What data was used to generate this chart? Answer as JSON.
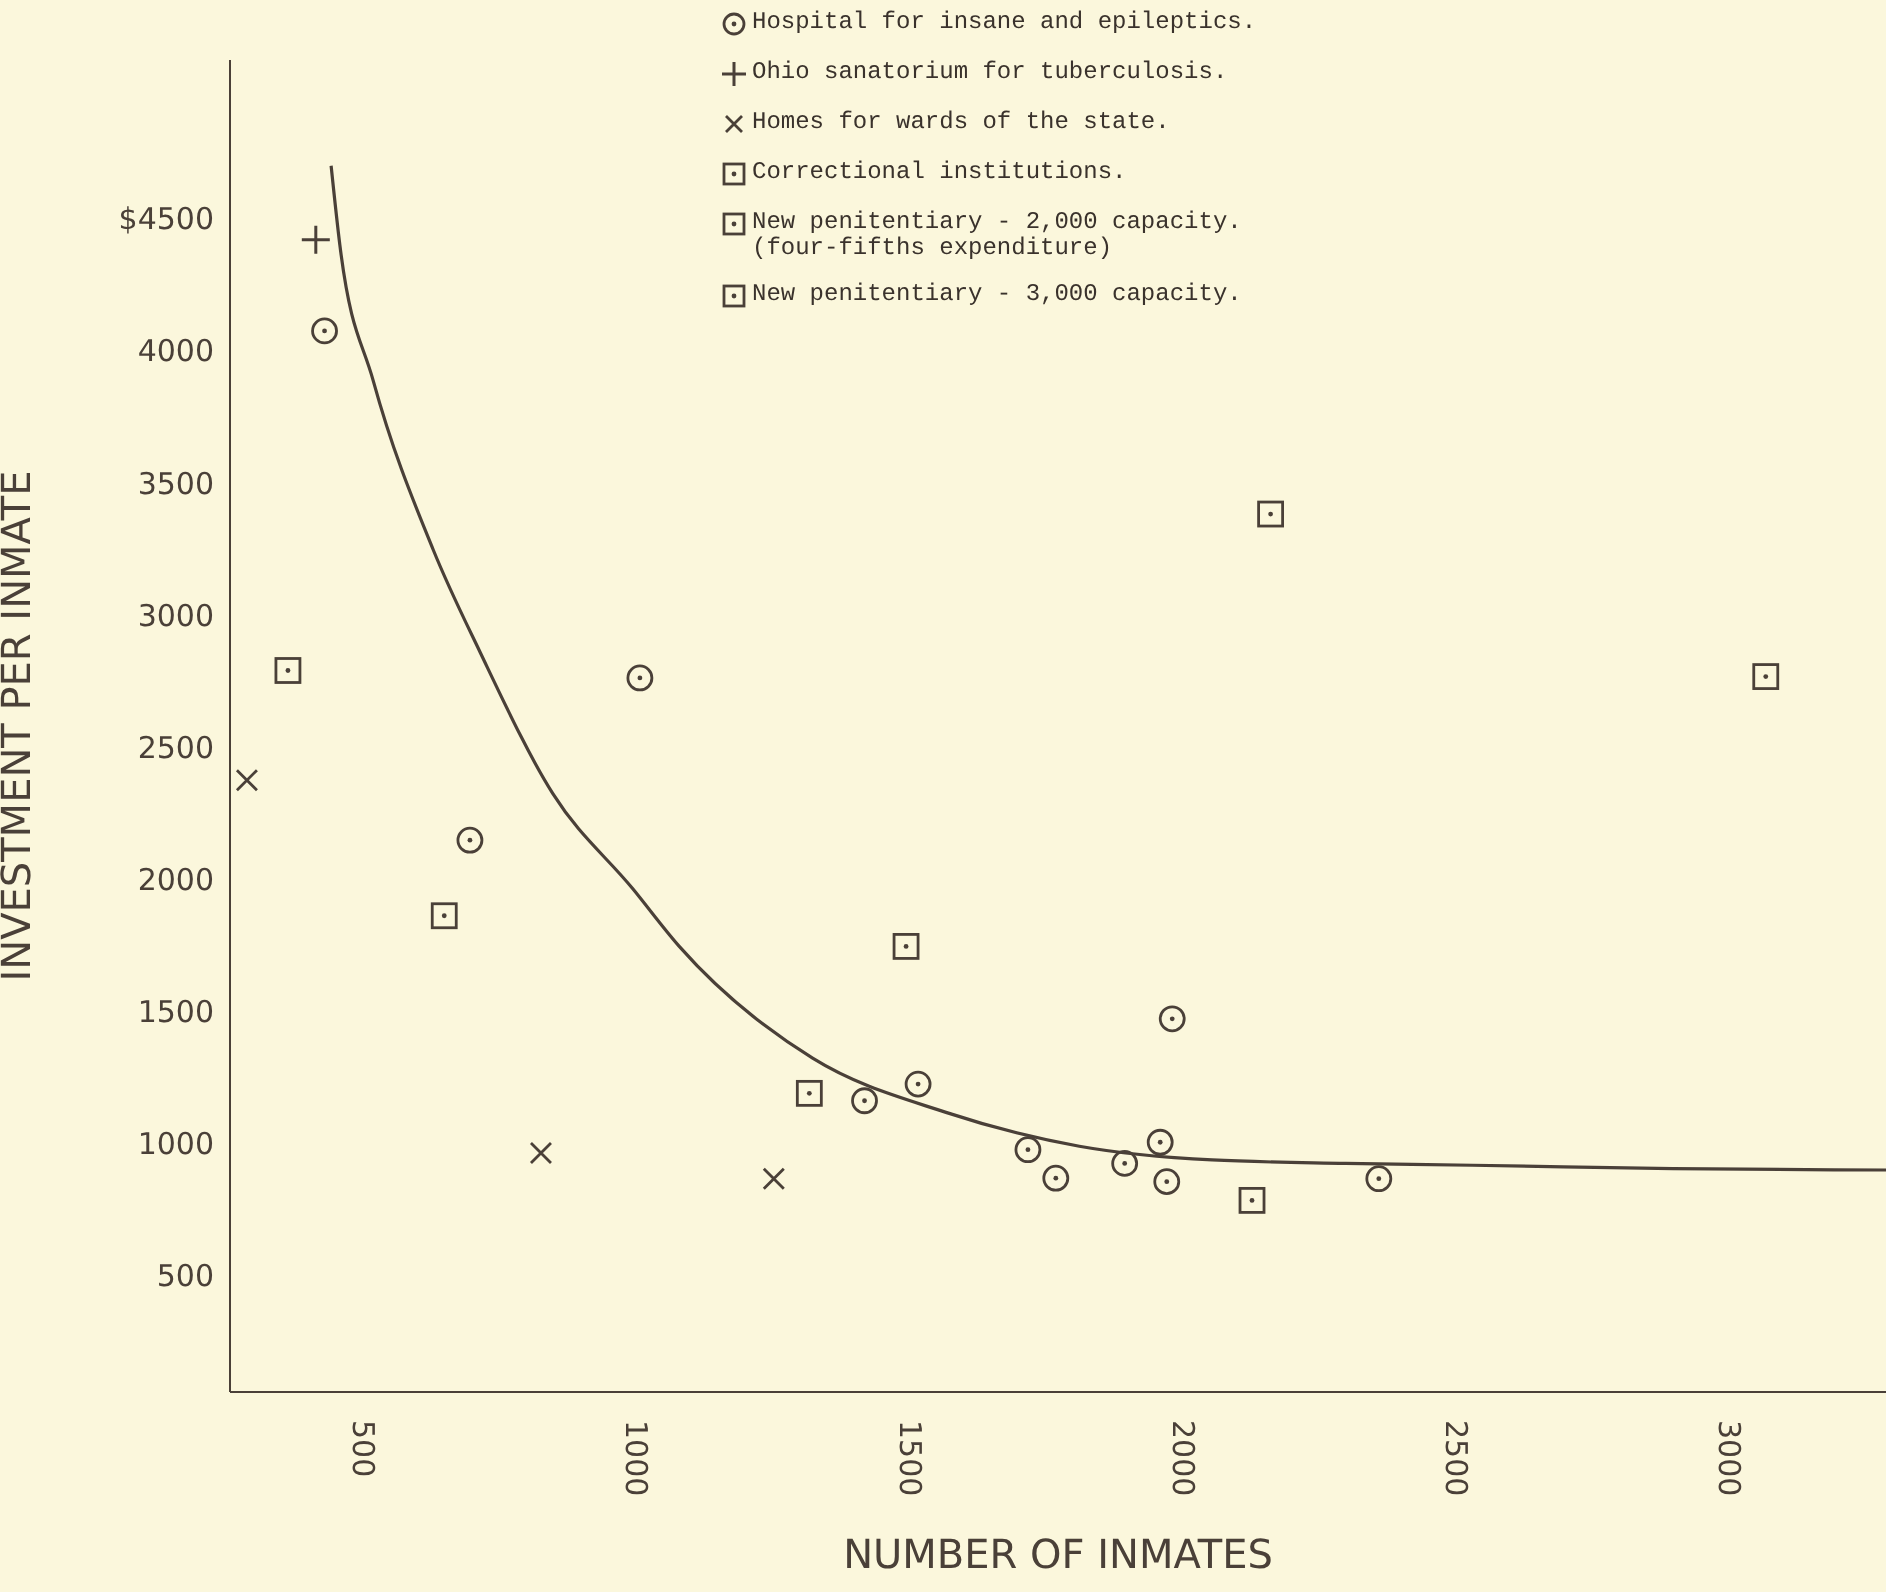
{
  "chart_data": {
    "type": "scatter",
    "xlabel": "NUMBER OF INMATES",
    "ylabel": "INVESTMENT PER INMATE",
    "xlim": [
      260,
      3290
    ],
    "ylim": [
      60,
      5100
    ],
    "xticks": [
      500,
      1000,
      1500,
      2000,
      2500,
      3000
    ],
    "yticks": [
      500,
      1000,
      1500,
      2000,
      2500,
      3000,
      3500,
      4000,
      {
        "value": 4500,
        "label": "$4500"
      }
    ],
    "legend": "top right",
    "series": [
      {
        "name": "Hospital for insane and epileptics.",
        "color": "#4a4038",
        "marker": "circle",
        "x": [
          433,
          699,
          1010,
          1421,
          1519,
          1720,
          1771,
          1897,
          1962,
          1974,
          1984,
          2362
        ],
        "values": [
          4075,
          2148,
          2762,
          1162,
          1225,
          977,
          869,
          925,
          1005,
          856,
          1472,
          867
        ]
      },
      {
        "name": "Ohio sanatorium for tuberculosis.",
        "color": "#4a4038",
        "marker": "plus",
        "x": [
          417
        ],
        "values": [
          4420
        ]
      },
      {
        "name": "Homes for wards of the state.",
        "color": "#4a4038",
        "marker": "cross",
        "x": [
          291,
          829,
          1255
        ],
        "values": [
          2375,
          964,
          867
        ]
      },
      {
        "name": "Correctional institutions.",
        "color": "#4a4038",
        "marker": "square",
        "x": [
          366,
          652,
          1320,
          1497,
          2130
        ],
        "values": [
          2790,
          1862,
          1190,
          1746,
          785
        ]
      },
      {
        "name": "New penitentiary - 2,000 capacity.\n(four-fifths expenditure)",
        "color": "#4a4038",
        "marker": "square",
        "x": [
          2164
        ],
        "values": [
          3382
        ]
      },
      {
        "name": "New penitentiary - 3,000 capacity.",
        "color": "#4a4038",
        "marker": "square",
        "x": [
          3070
        ],
        "values": [
          2767
        ]
      },
      {
        "type": "line",
        "color": "#4a4038",
        "marker": "none",
        "x": [
          445,
          461,
          522,
          632,
          717,
          851,
          997,
          1082,
          1326,
          1570,
          1814,
          2057,
          2301,
          2533,
          2900,
          3290
        ],
        "values": [
          4700,
          4400,
          3887,
          3246,
          2862,
          2323,
          1964,
          1746,
          1323,
          1118,
          990,
          938,
          925,
          918,
          905,
          900
        ]
      }
    ]
  }
}
